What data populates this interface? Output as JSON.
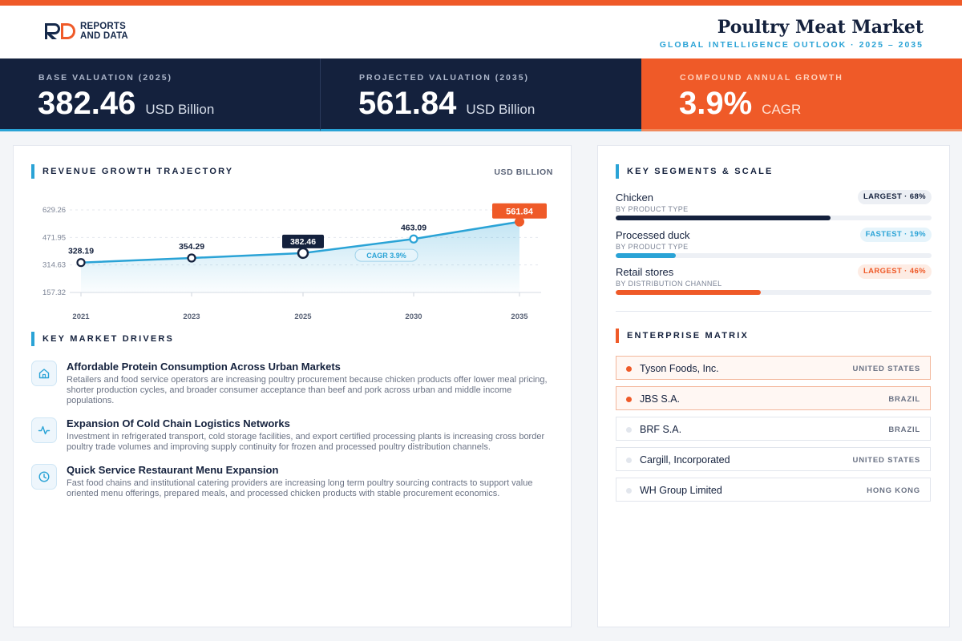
{
  "brand": {
    "logo_line1": "REPORTS",
    "logo_line2": "AND DATA",
    "colors": {
      "navy": "#14213d",
      "orange": "#ef5a28",
      "blue": "#2aa3d6"
    }
  },
  "header": {
    "title": "Poultry Meat Market",
    "subtitle": "GLOBAL INTELLIGENCE OUTLOOK  ·  2025 – 2035"
  },
  "kpis": [
    {
      "label": "BASE VALUATION (2025)",
      "value": "382.46",
      "unit": "USD Billion"
    },
    {
      "label": "PROJECTED VALUATION (2035)",
      "value": "561.84",
      "unit": "USD Billion"
    },
    {
      "label": "COMPOUND ANNUAL GROWTH",
      "value": "3.9%",
      "unit": "CAGR"
    }
  ],
  "revenue": {
    "section_title": "REVENUE GROWTH TRAJECTORY",
    "unit_label": "USD BILLION",
    "cagr_label": "CAGR 3.9%"
  },
  "chart_data": {
    "type": "area",
    "x": [
      "2021",
      "2023",
      "2025",
      "2030",
      "2035"
    ],
    "y": [
      328.19,
      354.29,
      382.46,
      463.09,
      561.84
    ],
    "data_labels": [
      "328.19",
      "354.29",
      "382.46",
      "463.09",
      "561.84"
    ],
    "y_ticks": [
      "629.26",
      "471.95",
      "314.63",
      "157.32"
    ],
    "y_tick_values": [
      629.26,
      471.95,
      314.63,
      157.32
    ],
    "ylim": [
      157.32,
      629.26
    ],
    "grid": true,
    "highlight": {
      "2025": "navy",
      "2035": "orange"
    }
  },
  "drivers": {
    "section_title": "KEY MARKET DRIVERS",
    "items": [
      {
        "icon": "home-icon",
        "title": "Affordable Protein Consumption Across Urban Markets",
        "desc": "Retailers and food service operators are increasing poultry procurement because chicken products offer lower meal pricing, shorter production cycles, and broader consumer acceptance than beef and pork across urban and middle income populations."
      },
      {
        "icon": "pulse-icon",
        "title": "Expansion Of Cold Chain Logistics Networks",
        "desc": "Investment in refrigerated transport, cold storage facilities, and export certified processing plants is increasing cross border poultry trade volumes and improving supply continuity for frozen and processed poultry distribution channels."
      },
      {
        "icon": "clock-icon",
        "title": "Quick Service Restaurant Menu Expansion",
        "desc": "Fast food chains and institutional catering providers are increasing long term poultry sourcing contracts to support value oriented menu offerings, prepared meals, and processed chicken products with stable procurement economics."
      }
    ]
  },
  "segments": {
    "section_title": "KEY SEGMENTS & SCALE",
    "items": [
      {
        "name": "Chicken",
        "sub": "BY PRODUCT TYPE",
        "badge": "LARGEST · 68%",
        "share": 0.68,
        "color": "#14213d",
        "badge_bg": "#eceff4",
        "badge_fg": "#14213d"
      },
      {
        "name": "Processed duck",
        "sub": "BY PRODUCT TYPE",
        "badge": "FASTEST · 19%",
        "share": 0.19,
        "color": "#2aa3d6",
        "badge_bg": "#e6f4fb",
        "badge_fg": "#2aa3d6"
      },
      {
        "name": "Retail stores",
        "sub": "BY DISTRIBUTION CHANNEL",
        "badge": "LARGEST · 46%",
        "share": 0.46,
        "color": "#ef5a28",
        "badge_bg": "#fdece4",
        "badge_fg": "#ef5a28"
      }
    ]
  },
  "matrix": {
    "section_title": "ENTERPRISE MATRIX",
    "items": [
      {
        "name": "Tyson Foods, Inc.",
        "country": "UNITED STATES",
        "highlight": true
      },
      {
        "name": "JBS S.A.",
        "country": "BRAZIL",
        "highlight": true
      },
      {
        "name": "BRF S.A.",
        "country": "BRAZIL",
        "highlight": false
      },
      {
        "name": "Cargill, Incorporated",
        "country": "UNITED STATES",
        "highlight": false
      },
      {
        "name": "WH Group Limited",
        "country": "HONG KONG",
        "highlight": false
      }
    ]
  }
}
